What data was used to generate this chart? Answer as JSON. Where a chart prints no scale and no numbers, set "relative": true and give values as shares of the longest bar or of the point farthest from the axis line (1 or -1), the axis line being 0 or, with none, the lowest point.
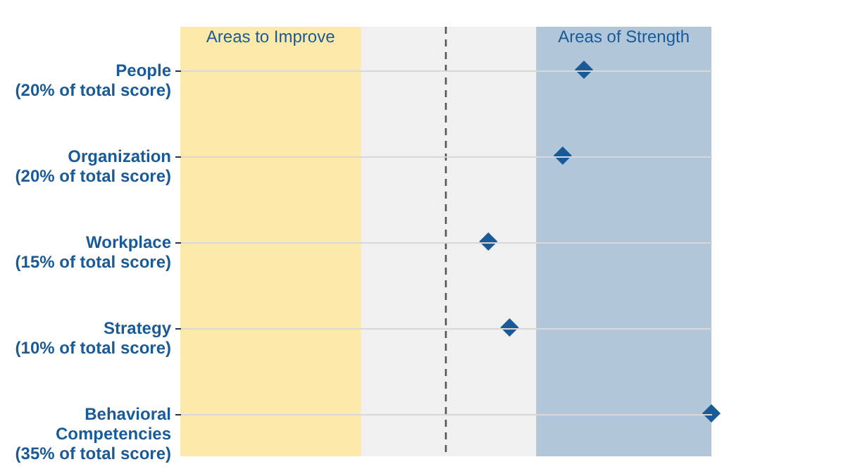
{
  "chart_data": {
    "type": "scatter",
    "orientation": "horizontal",
    "relative": true,
    "categories": [
      "People\n(20% of total score)",
      "Organization\n(20% of total score)",
      "Workplace\n(15% of total score)",
      "Strategy\n(10% of total score)",
      "Behavioral\nCompetencies\n(35% of total score)"
    ],
    "series": [
      {
        "color": "#1a5a96",
        "values": [
          0.76,
          0.72,
          0.58,
          0.62,
          1.0
        ]
      }
    ],
    "marker": "diamond",
    "grid": "y",
    "tick_labels": "y",
    "bands": [
      {
        "axis": "x",
        "from": 0,
        "to": 1.0,
        "label": null,
        "color": "#f0f0f0"
      },
      {
        "axis": "x",
        "from": 0,
        "to": 0.34,
        "label": "Areas to Improve",
        "color": "#fde9a9"
      },
      {
        "axis": "x",
        "from": 0.67,
        "to": 1.0,
        "label": "Areas of Strength",
        "color": "#b1c6d8"
      }
    ],
    "ref_lines": [
      {
        "axis": "x",
        "value": 0.5,
        "label": null,
        "color": "#555555",
        "line_style": "dashed"
      }
    ]
  }
}
